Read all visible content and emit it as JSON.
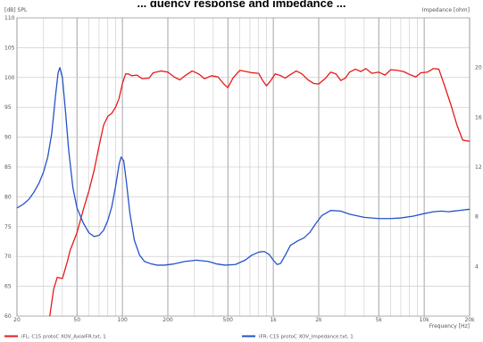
{
  "title": "... quency response and impedance ...",
  "chart_data": {
    "type": "line",
    "title": "",
    "y_left_label": "[dB]  SPL",
    "y_right_label": "Impedance  [ohm]",
    "xlabel": "Frequency  [Hz]",
    "x_scale": "log",
    "xlim": [
      20,
      20000
    ],
    "ylim_left": [
      60,
      110
    ],
    "ylim_right": [
      0,
      24
    ],
    "grid": true,
    "x_ticks": [
      {
        "v": 20,
        "label": "20"
      },
      {
        "v": 50,
        "label": "50"
      },
      {
        "v": 100,
        "label": "100"
      },
      {
        "v": 200,
        "label": "200"
      },
      {
        "v": 500,
        "label": "500"
      },
      {
        "v": 1000,
        "label": "1k"
      },
      {
        "v": 2000,
        "label": "2k"
      },
      {
        "v": 5000,
        "label": "5k"
      },
      {
        "v": 10000,
        "label": "10k"
      },
      {
        "v": 20000,
        "label": "20k"
      }
    ],
    "y_left_ticks": [
      "60",
      "65",
      "70",
      "75",
      "80",
      "85",
      "90",
      "95",
      "100",
      "105",
      "110"
    ],
    "y_right_ticks": [
      "4",
      "8",
      "12",
      "16",
      "20"
    ],
    "series": [
      {
        "name": "iFL: C15 protoC XOV_AxialFR.txt, 1",
        "axis": "left",
        "color": "#e8191a",
        "points": [
          [
            33,
            60
          ],
          [
            35,
            64.5
          ],
          [
            37,
            66.5
          ],
          [
            40,
            66.3
          ],
          [
            43,
            69
          ],
          [
            45,
            71
          ],
          [
            50,
            74
          ],
          [
            55,
            77.8
          ],
          [
            60,
            81
          ],
          [
            65,
            84.5
          ],
          [
            70,
            88.5
          ],
          [
            75,
            92
          ],
          [
            80,
            93.5
          ],
          [
            85,
            94
          ],
          [
            90,
            95
          ],
          [
            95,
            96.5
          ],
          [
            100,
            99
          ],
          [
            105,
            100.6
          ],
          [
            110,
            100.6
          ],
          [
            115,
            100.3
          ],
          [
            125,
            100.4
          ],
          [
            135,
            99.8
          ],
          [
            150,
            99.9
          ],
          [
            160,
            100.8
          ],
          [
            180,
            101.1
          ],
          [
            200,
            100.9
          ],
          [
            220,
            100.1
          ],
          [
            240,
            99.6
          ],
          [
            260,
            100.3
          ],
          [
            290,
            101.1
          ],
          [
            320,
            100.6
          ],
          [
            350,
            99.8
          ],
          [
            390,
            100.3
          ],
          [
            430,
            100.1
          ],
          [
            470,
            98.9
          ],
          [
            500,
            98.3
          ],
          [
            540,
            99.9
          ],
          [
            600,
            101.2
          ],
          [
            660,
            101
          ],
          [
            720,
            100.8
          ],
          [
            800,
            100.7
          ],
          [
            850,
            99.5
          ],
          [
            900,
            98.6
          ],
          [
            950,
            99.3
          ],
          [
            1030,
            100.6
          ],
          [
            1120,
            100.3
          ],
          [
            1200,
            99.9
          ],
          [
            1300,
            100.5
          ],
          [
            1420,
            101.1
          ],
          [
            1550,
            100.6
          ],
          [
            1700,
            99.6
          ],
          [
            1850,
            99
          ],
          [
            2000,
            98.9
          ],
          [
            2200,
            99.8
          ],
          [
            2400,
            100.9
          ],
          [
            2600,
            100.6
          ],
          [
            2800,
            99.5
          ],
          [
            3000,
            99.9
          ],
          [
            3200,
            100.9
          ],
          [
            3500,
            101.4
          ],
          [
            3800,
            101
          ],
          [
            4100,
            101.5
          ],
          [
            4500,
            100.7
          ],
          [
            5000,
            100.9
          ],
          [
            5500,
            100.4
          ],
          [
            6000,
            101.3
          ],
          [
            6600,
            101.2
          ],
          [
            7300,
            101
          ],
          [
            8000,
            100.5
          ],
          [
            8800,
            100.1
          ],
          [
            9500,
            100.8
          ],
          [
            10500,
            100.9
          ],
          [
            11500,
            101.5
          ],
          [
            12500,
            101.4
          ],
          [
            13500,
            99
          ],
          [
            15000,
            95.5
          ],
          [
            16500,
            92
          ],
          [
            18000,
            89.5
          ],
          [
            20000,
            89.3
          ]
        ]
      },
      {
        "name": "iFR: C15 protoC XOV_Impedance.txt, 1",
        "axis": "right",
        "color": "#2453c9",
        "points": [
          [
            20,
            8.7
          ],
          [
            22,
            9
          ],
          [
            24,
            9.4
          ],
          [
            26,
            10
          ],
          [
            28,
            10.7
          ],
          [
            30,
            11.6
          ],
          [
            32,
            12.8
          ],
          [
            34,
            14.7
          ],
          [
            36,
            17.7
          ],
          [
            37.5,
            19.6
          ],
          [
            38.5,
            20
          ],
          [
            40,
            19.2
          ],
          [
            42,
            16.4
          ],
          [
            44,
            13.4
          ],
          [
            47,
            10.3
          ],
          [
            50,
            8.7
          ],
          [
            55,
            7.5
          ],
          [
            60,
            6.7
          ],
          [
            65,
            6.4
          ],
          [
            70,
            6.5
          ],
          [
            75,
            6.9
          ],
          [
            80,
            7.7
          ],
          [
            85,
            8.8
          ],
          [
            90,
            10.4
          ],
          [
            95,
            12.2
          ],
          [
            98,
            12.8
          ],
          [
            102,
            12.5
          ],
          [
            106,
            10.9
          ],
          [
            112,
            8.3
          ],
          [
            120,
            6.1
          ],
          [
            130,
            4.9
          ],
          [
            140,
            4.4
          ],
          [
            155,
            4.2
          ],
          [
            170,
            4.1
          ],
          [
            190,
            4.1
          ],
          [
            220,
            4.2
          ],
          [
            260,
            4.4
          ],
          [
            310,
            4.5
          ],
          [
            370,
            4.4
          ],
          [
            420,
            4.2
          ],
          [
            480,
            4.1
          ],
          [
            560,
            4.15
          ],
          [
            650,
            4.5
          ],
          [
            720,
            4.9
          ],
          [
            800,
            5.15
          ],
          [
            870,
            5.2
          ],
          [
            940,
            4.95
          ],
          [
            1000,
            4.5
          ],
          [
            1060,
            4.15
          ],
          [
            1120,
            4.25
          ],
          [
            1200,
            4.9
          ],
          [
            1300,
            5.7
          ],
          [
            1450,
            6.05
          ],
          [
            1600,
            6.3
          ],
          [
            1750,
            6.75
          ],
          [
            1900,
            7.4
          ],
          [
            2100,
            8.1
          ],
          [
            2400,
            8.5
          ],
          [
            2800,
            8.45
          ],
          [
            3200,
            8.2
          ],
          [
            4000,
            7.95
          ],
          [
            5000,
            7.85
          ],
          [
            6000,
            7.85
          ],
          [
            7000,
            7.9
          ],
          [
            8500,
            8.05
          ],
          [
            10000,
            8.25
          ],
          [
            11500,
            8.4
          ],
          [
            13000,
            8.45
          ],
          [
            14500,
            8.4
          ],
          [
            17000,
            8.5
          ],
          [
            20000,
            8.6
          ]
        ]
      }
    ]
  }
}
